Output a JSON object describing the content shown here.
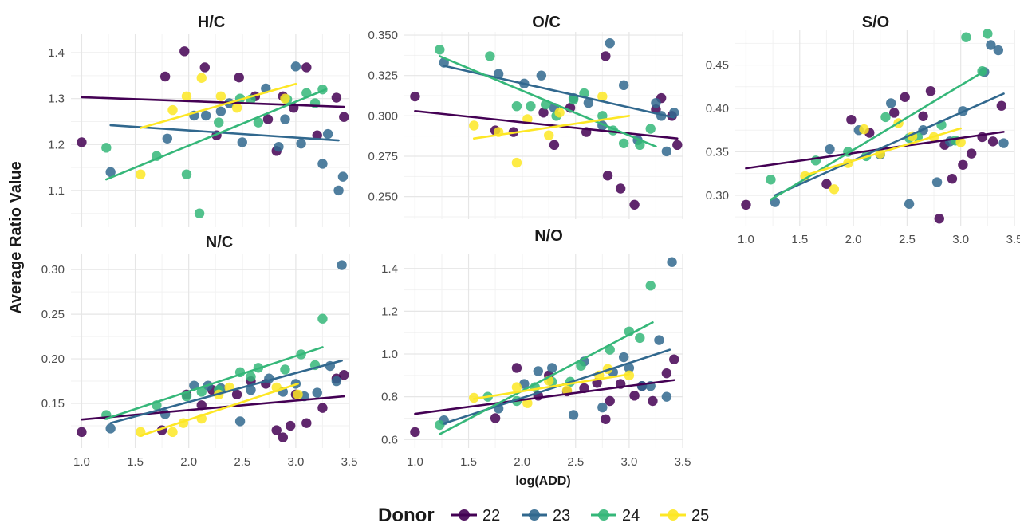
{
  "ylabel": "Average Ratio Value",
  "xlabel": "log(ADD)",
  "legend": {
    "title": "Donor",
    "position": "bottom",
    "entries": [
      {
        "label": "22",
        "color": "#440154"
      },
      {
        "label": "23",
        "color": "#31688e"
      },
      {
        "label": "24",
        "color": "#35b779"
      },
      {
        "label": "25",
        "color": "#fde725"
      }
    ]
  },
  "chart_data": [
    {
      "type": "scatter",
      "title": "H/C",
      "xlim": [
        0.9,
        3.5
      ],
      "ylim": [
        1.02,
        1.44
      ],
      "yticks": [
        "1.1",
        "1.2",
        "1.3",
        "1.4"
      ],
      "xticks": [],
      "grid": true,
      "series": [
        {
          "name": "22",
          "x": [
            1.0,
            1.78,
            1.96,
            2.15,
            2.26,
            2.47,
            2.62,
            2.74,
            2.82,
            2.88,
            2.98,
            3.1,
            3.2,
            3.38,
            3.45
          ],
          "y": [
            1.205,
            1.348,
            1.403,
            1.368,
            1.22,
            1.346,
            1.305,
            1.255,
            1.186,
            1.305,
            1.28,
            1.368,
            1.22,
            1.302,
            1.26
          ],
          "fit": [
            [
              1.0,
              1.303
            ],
            [
              3.45,
              1.282
            ]
          ]
        },
        {
          "name": "23",
          "x": [
            1.27,
            1.8,
            2.05,
            2.16,
            2.3,
            2.38,
            2.5,
            2.72,
            2.84,
            2.9,
            3.0,
            3.05,
            3.25,
            3.3,
            3.4,
            3.44
          ],
          "y": [
            1.14,
            1.213,
            1.263,
            1.263,
            1.272,
            1.29,
            1.205,
            1.322,
            1.195,
            1.255,
            1.37,
            1.202,
            1.158,
            1.223,
            1.1,
            1.13
          ],
          "fit": [
            [
              1.27,
              1.242
            ],
            [
              3.4,
              1.209
            ]
          ]
        },
        {
          "name": "24",
          "x": [
            1.23,
            1.7,
            1.98,
            2.1,
            2.28,
            2.48,
            2.58,
            2.65,
            2.92,
            3.1,
            3.18,
            3.25
          ],
          "y": [
            1.193,
            1.175,
            1.135,
            1.05,
            1.248,
            1.3,
            1.298,
            1.248,
            1.298,
            1.312,
            1.29,
            1.32
          ],
          "fit": [
            [
              1.23,
              1.124
            ],
            [
              3.28,
              1.32
            ]
          ]
        },
        {
          "name": "25",
          "x": [
            1.55,
            1.85,
            1.98,
            2.12,
            2.3,
            2.45,
            2.9
          ],
          "y": [
            1.135,
            1.275,
            1.305,
            1.345,
            1.305,
            1.28,
            1.3
          ],
          "fit": [
            [
              1.55,
              1.236
            ],
            [
              3.0,
              1.332
            ]
          ]
        }
      ]
    },
    {
      "type": "scatter",
      "title": "O/C",
      "xlim": [
        0.9,
        3.5
      ],
      "ylim": [
        0.236,
        0.352
      ],
      "yticks": [
        "0.250",
        "0.275",
        "0.300",
        "0.325",
        "0.350"
      ],
      "xticks": [],
      "grid": true,
      "series": [
        {
          "name": "22",
          "x": [
            1.0,
            1.75,
            1.92,
            2.2,
            2.3,
            2.45,
            2.6,
            2.78,
            2.8,
            2.92,
            3.05,
            3.25,
            3.3,
            3.4,
            3.45
          ],
          "y": [
            0.312,
            0.291,
            0.29,
            0.302,
            0.282,
            0.305,
            0.29,
            0.337,
            0.263,
            0.255,
            0.245,
            0.304,
            0.311,
            0.3,
            0.282
          ],
          "fit": [
            [
              1.0,
              0.303
            ],
            [
              3.45,
              0.286
            ]
          ]
        },
        {
          "name": "23",
          "x": [
            1.27,
            1.78,
            2.02,
            2.18,
            2.3,
            2.48,
            2.62,
            2.75,
            2.82,
            2.95,
            3.08,
            3.25,
            3.3,
            3.35,
            3.42
          ],
          "y": [
            0.333,
            0.326,
            0.32,
            0.325,
            0.305,
            0.311,
            0.308,
            0.294,
            0.345,
            0.319,
            0.285,
            0.308,
            0.3,
            0.278,
            0.302
          ],
          "fit": [
            [
              1.27,
              0.331
            ],
            [
              3.42,
              0.299
            ]
          ]
        },
        {
          "name": "24",
          "x": [
            1.23,
            1.7,
            1.95,
            2.08,
            2.22,
            2.32,
            2.48,
            2.58,
            2.75,
            2.85,
            2.95,
            3.1,
            3.2
          ],
          "y": [
            0.341,
            0.337,
            0.306,
            0.306,
            0.307,
            0.3,
            0.31,
            0.314,
            0.3,
            0.291,
            0.283,
            0.282,
            0.292
          ],
          "fit": [
            [
              1.23,
              0.337
            ],
            [
              3.25,
              0.281
            ]
          ]
        },
        {
          "name": "25",
          "x": [
            1.55,
            1.78,
            1.95,
            2.05,
            2.25,
            2.35,
            2.75
          ],
          "y": [
            0.294,
            0.29,
            0.271,
            0.298,
            0.288,
            0.302,
            0.312
          ],
          "fit": [
            [
              1.55,
              0.286
            ],
            [
              3.0,
              0.3
            ]
          ]
        }
      ]
    },
    {
      "type": "scatter",
      "title": "S/O",
      "xlim": [
        0.9,
        3.5
      ],
      "ylim": [
        0.265,
        0.49
      ],
      "yticks": [
        "0.30",
        "0.35",
        "0.40",
        "0.45"
      ],
      "xticks": [
        "1.0",
        "1.5",
        "2.0",
        "2.5",
        "3.0",
        "3.5"
      ],
      "grid": true,
      "series": [
        {
          "name": "22",
          "x": [
            1.0,
            1.75,
            1.98,
            2.15,
            2.38,
            2.48,
            2.65,
            2.72,
            2.8,
            2.85,
            2.92,
            3.02,
            3.1,
            3.2,
            3.3,
            3.38
          ],
          "y": [
            0.289,
            0.313,
            0.387,
            0.372,
            0.395,
            0.413,
            0.391,
            0.42,
            0.273,
            0.358,
            0.319,
            0.335,
            0.348,
            0.367,
            0.362,
            0.403
          ],
          "fit": [
            [
              1.0,
              0.331
            ],
            [
              3.4,
              0.373
            ]
          ]
        },
        {
          "name": "23",
          "x": [
            1.27,
            1.78,
            2.05,
            2.25,
            2.35,
            2.52,
            2.65,
            2.78,
            2.9,
            3.02,
            3.22,
            3.28,
            3.35,
            3.4
          ],
          "y": [
            0.292,
            0.353,
            0.375,
            0.347,
            0.406,
            0.29,
            0.375,
            0.315,
            0.362,
            0.397,
            0.442,
            0.473,
            0.467,
            0.36
          ],
          "fit": [
            [
              1.27,
              0.3
            ],
            [
              3.4,
              0.417
            ]
          ]
        },
        {
          "name": "24",
          "x": [
            1.23,
            1.65,
            1.95,
            2.12,
            2.3,
            2.52,
            2.6,
            2.82,
            2.95,
            3.05,
            3.2,
            3.25
          ],
          "y": [
            0.318,
            0.34,
            0.35,
            0.345,
            0.39,
            0.366,
            0.367,
            0.381,
            0.363,
            0.482,
            0.443,
            0.486
          ],
          "fit": [
            [
              1.23,
              0.295
            ],
            [
              3.22,
              0.443
            ]
          ]
        },
        {
          "name": "25",
          "x": [
            1.55,
            1.82,
            1.95,
            2.1,
            2.25,
            2.42,
            2.55,
            2.75,
            3.0
          ],
          "y": [
            0.322,
            0.307,
            0.337,
            0.376,
            0.348,
            0.383,
            0.368,
            0.367,
            0.361
          ],
          "fit": [
            [
              1.55,
              0.323
            ],
            [
              3.0,
              0.377
            ]
          ]
        }
      ]
    },
    {
      "type": "scatter",
      "title": "N/C",
      "xlim": [
        0.9,
        3.5
      ],
      "ylim": [
        0.1,
        0.318
      ],
      "yticks": [
        "0.15",
        "0.20",
        "0.25",
        "0.30"
      ],
      "xticks": [
        "1.0",
        "1.5",
        "2.0",
        "2.5",
        "3.0",
        "3.5"
      ],
      "grid": true,
      "series": [
        {
          "name": "22",
          "x": [
            1.0,
            1.75,
            1.98,
            2.12,
            2.22,
            2.45,
            2.58,
            2.72,
            2.82,
            2.88,
            2.95,
            3.0,
            3.1,
            3.25,
            3.38,
            3.45
          ],
          "y": [
            0.118,
            0.12,
            0.16,
            0.148,
            0.165,
            0.16,
            0.175,
            0.172,
            0.12,
            0.112,
            0.125,
            0.16,
            0.128,
            0.145,
            0.178,
            0.182
          ],
          "fit": [
            [
              1.0,
              0.132
            ],
            [
              3.45,
              0.158
            ]
          ]
        },
        {
          "name": "23",
          "x": [
            1.27,
            1.78,
            2.05,
            2.18,
            2.3,
            2.48,
            2.58,
            2.75,
            2.88,
            3.0,
            3.08,
            3.2,
            3.32,
            3.38,
            3.43
          ],
          "y": [
            0.122,
            0.138,
            0.17,
            0.17,
            0.167,
            0.13,
            0.165,
            0.178,
            0.163,
            0.172,
            0.158,
            0.162,
            0.192,
            0.175,
            0.305
          ],
          "fit": [
            [
              1.27,
              0.128
            ],
            [
              3.43,
              0.198
            ]
          ]
        },
        {
          "name": "24",
          "x": [
            1.23,
            1.7,
            1.98,
            2.12,
            2.28,
            2.48,
            2.58,
            2.65,
            2.9,
            3.05,
            3.18,
            3.25
          ],
          "y": [
            0.137,
            0.148,
            0.158,
            0.163,
            0.165,
            0.185,
            0.18,
            0.19,
            0.188,
            0.205,
            0.193,
            0.245
          ],
          "fit": [
            [
              1.23,
              0.133
            ],
            [
              3.25,
              0.213
            ]
          ]
        },
        {
          "name": "25",
          "x": [
            1.55,
            1.85,
            1.95,
            2.12,
            2.28,
            2.38,
            2.82,
            3.02
          ],
          "y": [
            0.118,
            0.118,
            0.128,
            0.133,
            0.16,
            0.168,
            0.168,
            0.16
          ],
          "fit": [
            [
              1.55,
              0.114
            ],
            [
              3.02,
              0.172
            ]
          ]
        }
      ]
    },
    {
      "type": "scatter",
      "title": "N/O",
      "xlim": [
        0.9,
        3.5
      ],
      "ylim": [
        0.56,
        1.47
      ],
      "yticks": [
        "0.6",
        "0.8",
        "1.0",
        "1.2",
        "1.4"
      ],
      "xticks": [
        "1.0",
        "1.5",
        "2.0",
        "2.5",
        "3.0",
        "3.5"
      ],
      "grid": true,
      "series": [
        {
          "name": "22",
          "x": [
            1.0,
            1.75,
            1.95,
            2.15,
            2.25,
            2.42,
            2.58,
            2.7,
            2.78,
            2.82,
            2.92,
            3.05,
            3.12,
            3.22,
            3.35,
            3.42
          ],
          "y": [
            0.635,
            0.7,
            0.935,
            0.805,
            0.9,
            0.825,
            0.84,
            0.865,
            0.695,
            0.78,
            0.86,
            0.805,
            0.85,
            0.78,
            0.91,
            0.975
          ],
          "fit": [
            [
              1.0,
              0.72
            ],
            [
              3.42,
              0.878
            ]
          ]
        },
        {
          "name": "23",
          "x": [
            1.27,
            1.78,
            2.02,
            2.15,
            2.28,
            2.48,
            2.58,
            2.75,
            2.85,
            2.95,
            3.0,
            3.12,
            3.2,
            3.28,
            3.35,
            3.4
          ],
          "y": [
            0.69,
            0.745,
            0.86,
            0.92,
            0.935,
            0.715,
            0.965,
            0.75,
            0.915,
            0.985,
            0.935,
            0.85,
            0.85,
            1.065,
            0.8,
            1.43
          ],
          "fit": [
            [
              1.27,
              0.675
            ],
            [
              3.38,
              1.02
            ]
          ]
        },
        {
          "name": "24",
          "x": [
            1.23,
            1.68,
            1.95,
            2.12,
            2.28,
            2.45,
            2.55,
            2.82,
            3.0,
            3.1,
            3.2
          ],
          "y": [
            0.668,
            0.8,
            0.78,
            0.845,
            0.87,
            0.87,
            0.945,
            1.02,
            1.105,
            1.075,
            1.32
          ],
          "fit": [
            [
              1.23,
              0.625
            ],
            [
              3.22,
              1.148
            ]
          ]
        },
        {
          "name": "25",
          "x": [
            1.55,
            1.95,
            2.05,
            2.25,
            2.42,
            2.72,
            2.8,
            3.0
          ],
          "y": [
            0.795,
            0.845,
            0.77,
            0.875,
            0.83,
            0.9,
            0.93,
            0.9
          ],
          "fit": [
            [
              1.55,
              0.79
            ],
            [
              3.0,
              0.905
            ]
          ]
        }
      ]
    }
  ]
}
